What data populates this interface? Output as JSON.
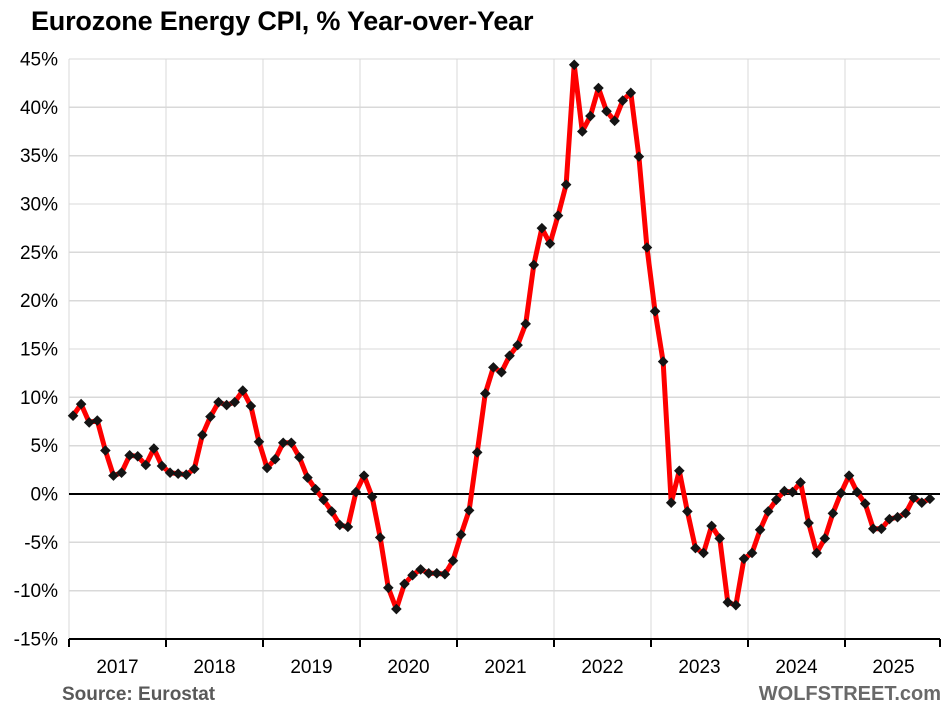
{
  "page": {
    "title": "Eurozone Energy CPI, % Year-over-Year"
  },
  "footer": {
    "source": "Source: Eurostat",
    "watermark": "WOLFSTREET.com"
  },
  "colors": {
    "line": "#fe0000",
    "marker": "#141414",
    "grid": "#d9d9d9",
    "zero_line": "#000000",
    "axis": "#000000",
    "tick_label": "#000000",
    "source_text": "#595959",
    "watermark_text": "#696969",
    "background": "#ffffff"
  },
  "chart_data": {
    "type": "line",
    "title": "Eurozone Energy CPI, % Year-over-Year",
    "xlabel": "",
    "ylabel": "",
    "unit": "% year-over-year",
    "ylim": [
      -15,
      45
    ],
    "grid": true,
    "zero_line": true,
    "legend": "none",
    "x_monthly_start": "2017-01",
    "x_monthly_end": "2025-11",
    "x_tick_labels": [
      "2017",
      "2018",
      "2019",
      "2020",
      "2021",
      "2022",
      "2023",
      "2024",
      "2025"
    ],
    "y_tick_values": [
      45,
      40,
      35,
      30,
      25,
      20,
      15,
      10,
      5,
      0,
      -5,
      -10,
      -15
    ],
    "y_tick_labels": [
      "45%",
      "40%",
      "35%",
      "30%",
      "25%",
      "20%",
      "15%",
      "10%",
      "5%",
      "0%",
      "-5%",
      "-10%",
      "-15%"
    ],
    "series": [
      {
        "name": "Eurozone Energy CPI, % YoY",
        "color": "#fe0000",
        "marker": "diamond",
        "marker_color": "#141414",
        "values": [
          8.1,
          9.3,
          7.4,
          7.6,
          4.5,
          1.9,
          2.2,
          4.0,
          3.9,
          3.0,
          4.7,
          2.9,
          2.2,
          2.1,
          2.0,
          2.6,
          6.1,
          8.0,
          9.5,
          9.2,
          9.5,
          10.7,
          9.1,
          5.4,
          2.7,
          3.6,
          5.3,
          5.3,
          3.8,
          1.7,
          0.5,
          -0.6,
          -1.8,
          -3.2,
          -3.4,
          0.2,
          1.9,
          -0.3,
          -4.5,
          -9.7,
          -11.9,
          -9.3,
          -8.4,
          -7.8,
          -8.2,
          -8.2,
          -8.3,
          -6.9,
          -4.2,
          -1.7,
          4.3,
          10.4,
          13.1,
          12.6,
          14.3,
          15.4,
          17.6,
          23.7,
          27.5,
          25.9,
          28.8,
          32.0,
          44.4,
          37.5,
          39.1,
          42.0,
          39.6,
          38.6,
          40.7,
          41.5,
          34.9,
          25.5,
          18.9,
          13.7,
          -0.9,
          2.4,
          -1.8,
          -5.6,
          -6.1,
          -3.3,
          -4.6,
          -11.2,
          -11.5,
          -6.7,
          -6.1,
          -3.7,
          -1.8,
          -0.6,
          0.3,
          0.2,
          1.2,
          -3.0,
          -6.1,
          -4.6,
          -2.0,
          0.1,
          1.9,
          0.2,
          -1.0,
          -3.6,
          -3.6,
          -2.6,
          -2.4,
          -2.0,
          -0.4,
          -0.9,
          -0.5
        ]
      }
    ]
  }
}
